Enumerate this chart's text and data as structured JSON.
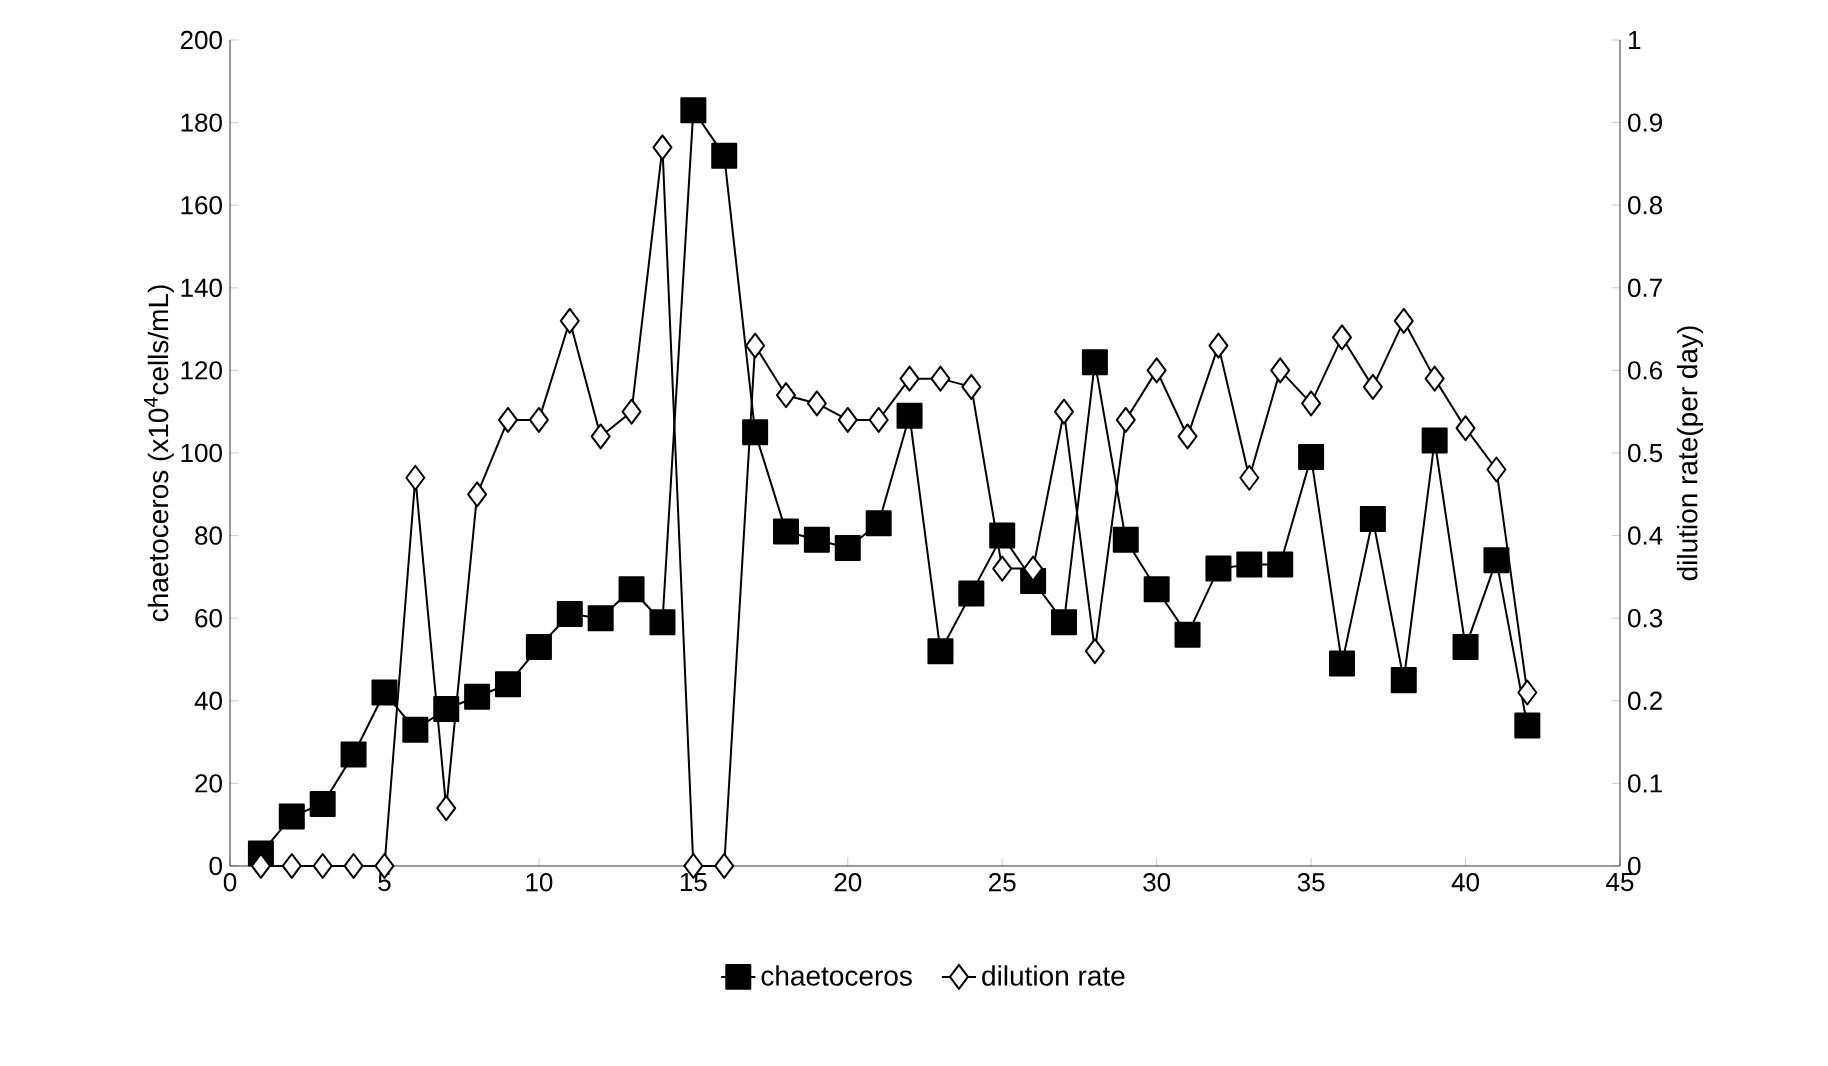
{
  "chart_data": {
    "type": "line",
    "xlabel": null,
    "ylabel": "chaetoceros (x10$^{4}$cells/mL)",
    "y2label": "dilution rate(per day)",
    "x": [
      1,
      2,
      3,
      4,
      5,
      6,
      7,
      8,
      9,
      10,
      11,
      12,
      13,
      14,
      15,
      16,
      17,
      18,
      19,
      20,
      21,
      22,
      23,
      24,
      25,
      26,
      27,
      28,
      29,
      30,
      31,
      32,
      33,
      34,
      35,
      36,
      37,
      38,
      39,
      40,
      41,
      42
    ],
    "series": [
      {
        "name": "chaetoceros",
        "color": "#000000",
        "marker": "square",
        "values": [
          3,
          12,
          15,
          27,
          42,
          33,
          38,
          41,
          44,
          53,
          61,
          60,
          67,
          59,
          183,
          172,
          105,
          81,
          79,
          77,
          83,
          109,
          52,
          66,
          80,
          69,
          59,
          122,
          79,
          67,
          56,
          72,
          73,
          73,
          99,
          49,
          84,
          45,
          103,
          53,
          74,
          34
        ]
      },
      {
        "name": "dilution rate",
        "color": "#000000",
        "marker": "diamond",
        "axis": "y2",
        "values": [
          0,
          0,
          0,
          0,
          0,
          0.47,
          0.07,
          0.45,
          0.54,
          0.54,
          0.66,
          0.52,
          0.55,
          0.87,
          0,
          0,
          0.63,
          0.57,
          0.56,
          0.54,
          0.54,
          0.59,
          0.59,
          0.58,
          0.36,
          0.36,
          0.55,
          0.26,
          0.54,
          0.6,
          0.52,
          0.63,
          0.47,
          0.6,
          0.56,
          0.64,
          0.58,
          0.66,
          0.59,
          0.53,
          0.48,
          0.21
        ]
      }
    ],
    "xlim": [
      0,
      45
    ],
    "xticks": [
      0,
      5,
      10,
      15,
      20,
      25,
      30,
      35,
      40,
      45
    ],
    "ylim": [
      0,
      200
    ],
    "yticks": [
      0,
      20,
      40,
      60,
      80,
      100,
      120,
      140,
      160,
      180,
      200
    ],
    "y2lim": [
      0,
      1
    ],
    "y2ticks": [
      0,
      0.1,
      0.2,
      0.3,
      0.4,
      0.5,
      0.6,
      0.7,
      0.8,
      0.9,
      1
    ],
    "grid": false,
    "legend": "bottom",
    "line_style": "solid"
  }
}
